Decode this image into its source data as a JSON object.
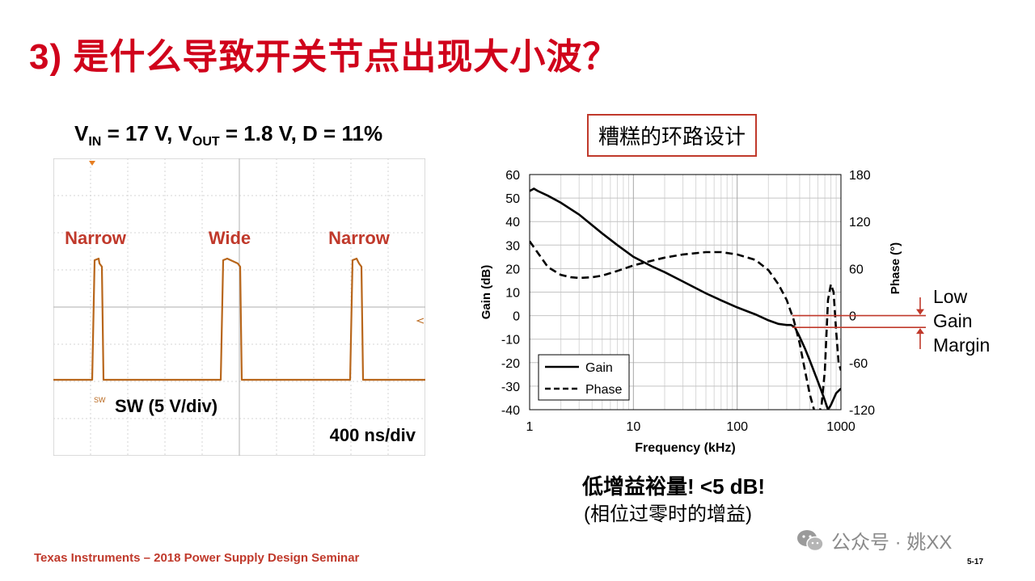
{
  "title": "3) 是什么导致开关节点出现大小波？",
  "scope": {
    "caption_parts": [
      {
        "text": "V"
      },
      {
        "sub": "IN"
      },
      {
        "text": " = 17 V, V"
      },
      {
        "sub": "OUT"
      },
      {
        "text": " = 1.8 V, D = 11%"
      }
    ],
    "pulse_labels": [
      "Narrow",
      "Wide",
      "Narrow"
    ],
    "channel_label": "SW (5 V/div)",
    "timebase_label": "400 ns/div",
    "trace_tag": "SW",
    "channel_marker": "1",
    "colors": {
      "trace": "#b8661b",
      "label": "#c0392b",
      "grid": "#d5d5d5"
    }
  },
  "bode_title": "糟糕的环路设计",
  "margin_label": [
    "Low",
    "Gain",
    "Margin"
  ],
  "notes": [
    "低增益裕量! <5 dB!",
    "(相位过零时的增益)"
  ],
  "footer": "Texas Instruments – 2018 Power Supply Design Seminar",
  "page_number": "5-17",
  "watermark": "公众号 · 姚XX",
  "chart_data": {
    "type": "line",
    "xlabel": "Frequency (kHz)",
    "ylabel": "Gain (dB)",
    "y2label": "Phase (°)",
    "xscale": "log",
    "xlim": [
      1,
      1000
    ],
    "ylim": [
      -40,
      60
    ],
    "y2lim": [
      -120,
      180
    ],
    "xticks": [
      "1",
      "10",
      "100",
      "1000"
    ],
    "yticks": [
      "60",
      "50",
      "40",
      "30",
      "20",
      "10",
      "0",
      "-10",
      "-20",
      "-30",
      "-40"
    ],
    "y2ticks": [
      "180",
      "120",
      "60",
      "0",
      "-60",
      "-120"
    ],
    "grid": true,
    "legend_position": "bottom-left",
    "series": [
      {
        "name": "Gain",
        "style": "solid",
        "axis": "left",
        "x": [
          1,
          1.1,
          1.2,
          1.5,
          2,
          3,
          5,
          7,
          10,
          15,
          20,
          30,
          50,
          70,
          100,
          150,
          200,
          250,
          300,
          330,
          360,
          400,
          450,
          500,
          600,
          700,
          750,
          800,
          900,
          1000
        ],
        "y": [
          53,
          54,
          53,
          51,
          48,
          43,
          35,
          30,
          25,
          21,
          18.5,
          14.5,
          9.5,
          6.5,
          3.5,
          0.5,
          -2,
          -3.5,
          -4,
          -4,
          -5,
          -9,
          -14,
          -19,
          -28,
          -36,
          -40,
          -38,
          -33,
          -31
        ]
      },
      {
        "name": "Phase",
        "style": "dashed",
        "axis": "right",
        "x": [
          1,
          1.2,
          1.5,
          2,
          2.5,
          3,
          4,
          5,
          7,
          10,
          15,
          20,
          30,
          50,
          70,
          100,
          150,
          200,
          250,
          300,
          350,
          400,
          450,
          500,
          550,
          600,
          650,
          700,
          750,
          800,
          850,
          900,
          950,
          1000
        ],
        "y": [
          95,
          80,
          62,
          52,
          49,
          48,
          49,
          51,
          57,
          64,
          70,
          74,
          78,
          81,
          81,
          78,
          71,
          58,
          40,
          20,
          -5,
          -35,
          -70,
          -100,
          -120,
          -128,
          -115,
          -70,
          20,
          40,
          30,
          -20,
          -60,
          -70
        ]
      }
    ],
    "markers": [
      {
        "label": "phase 0° crossing",
        "x": 340,
        "y": 0
      },
      {
        "label": "gain margin",
        "x": 340,
        "y": -5
      }
    ],
    "colors": {
      "gain": "#000000",
      "phase": "#000000",
      "margin": "#c0392b"
    }
  }
}
